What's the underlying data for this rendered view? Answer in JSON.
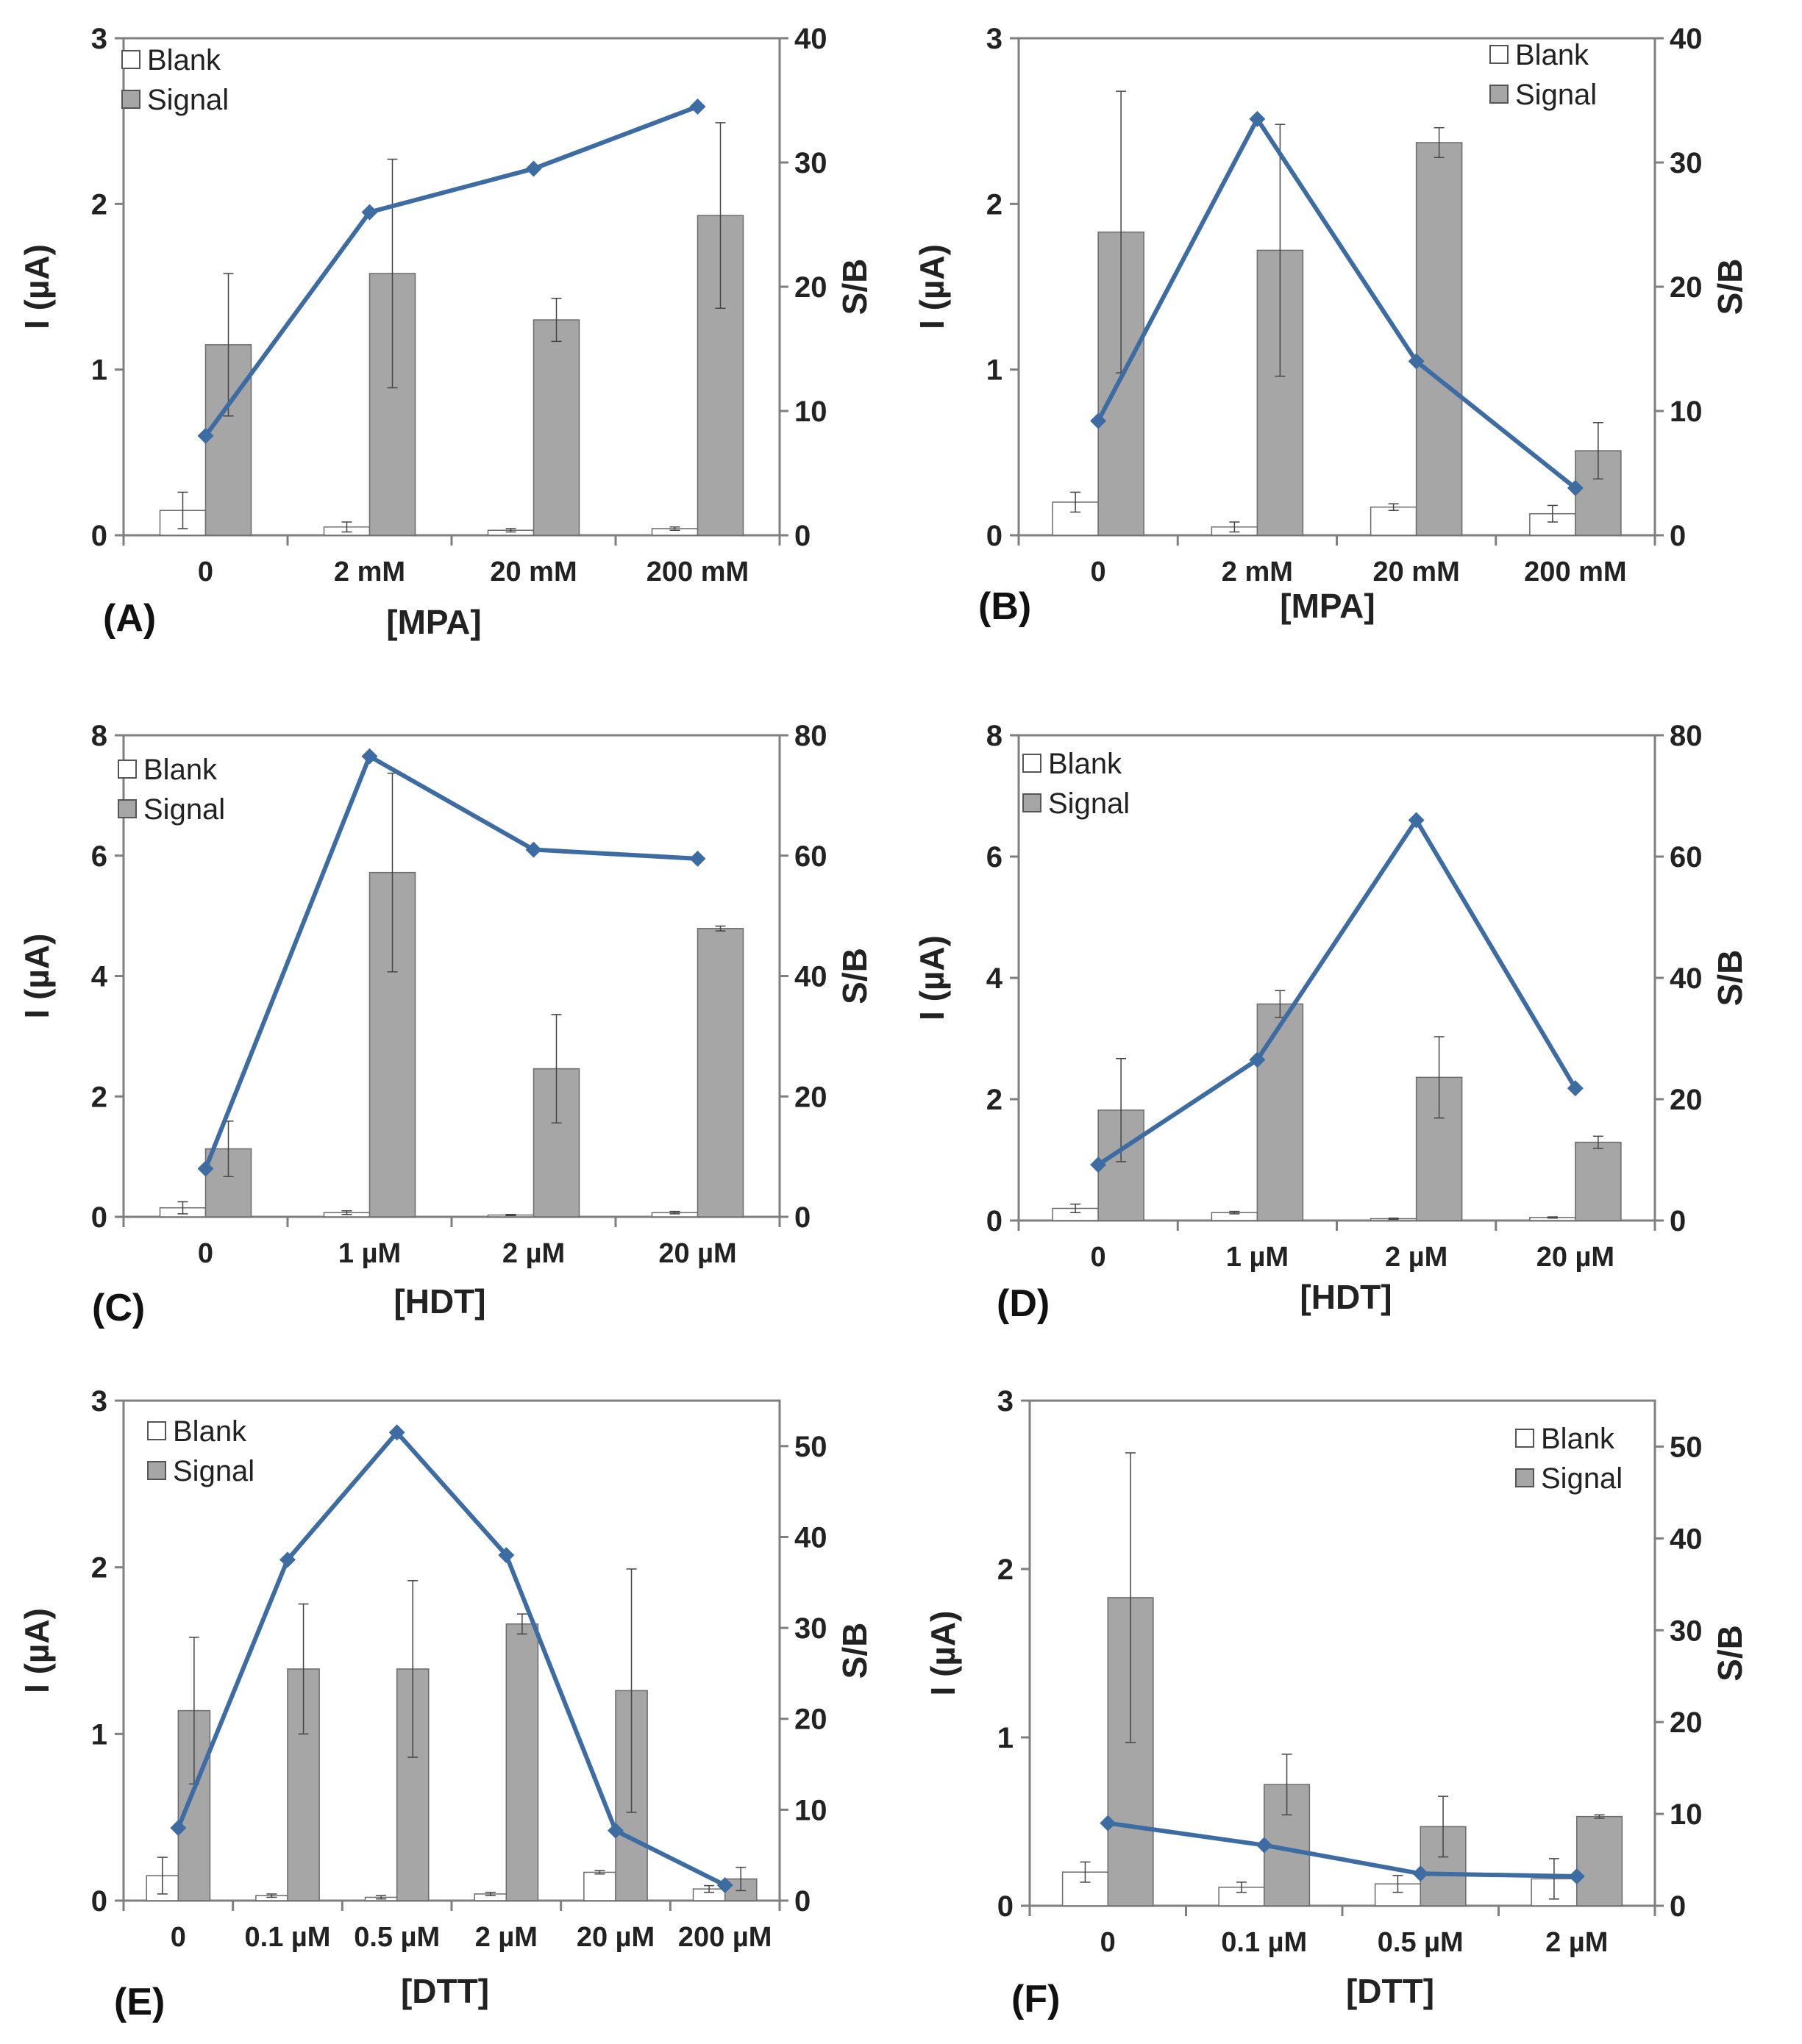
{
  "figure": {
    "legend_blank": "Blank",
    "legend_signal": "Signal",
    "colors": {
      "blank": "#ffffff",
      "signal": "#a6a6a6",
      "line": "#3d6ca3",
      "axis": "#7f7f7f"
    }
  },
  "chart_data": [
    {
      "panel_label": "(A)",
      "type": "bar",
      "xlabel": "[MPA]",
      "ylabel": "I (µA)",
      "y2label": "S/B",
      "categories": [
        "0",
        "2 mM",
        "20 mM",
        "200 mM"
      ],
      "ylim": [
        0,
        3
      ],
      "yticks": [
        "0",
        "1",
        "2",
        "3"
      ],
      "y2lim": [
        0,
        40
      ],
      "y2ticks": [
        "0",
        "10",
        "20",
        "30",
        "40"
      ],
      "legend_position": "top-left",
      "series": [
        {
          "name": "Blank",
          "values": [
            0.15,
            0.05,
            0.03,
            0.04
          ],
          "errors": [
            0.11,
            0.03,
            0.01,
            0.01
          ]
        },
        {
          "name": "Signal",
          "values": [
            1.15,
            1.58,
            1.3,
            1.93
          ],
          "errors": [
            0.43,
            0.69,
            0.13,
            0.56
          ]
        },
        {
          "name": "S/B",
          "axis": "secondary",
          "values": [
            8,
            26,
            29.5,
            34.5
          ]
        }
      ]
    },
    {
      "panel_label": "(B)",
      "type": "bar",
      "xlabel": "[MPA]",
      "ylabel": "I (µA)",
      "y2label": "S/B",
      "categories": [
        "0",
        "2 mM",
        "20 mM",
        "200 mM"
      ],
      "ylim": [
        0,
        3
      ],
      "yticks": [
        "0",
        "1",
        "2",
        "3"
      ],
      "y2lim": [
        0,
        40
      ],
      "y2ticks": [
        "0",
        "10",
        "20",
        "30",
        "40"
      ],
      "legend_position": "top-right",
      "series": [
        {
          "name": "Blank",
          "values": [
            0.2,
            0.05,
            0.17,
            0.13
          ],
          "errors": [
            0.06,
            0.03,
            0.02,
            0.05
          ]
        },
        {
          "name": "Signal",
          "values": [
            1.83,
            1.72,
            2.37,
            0.51
          ],
          "errors": [
            0.85,
            0.76,
            0.09,
            0.17
          ]
        },
        {
          "name": "S/B",
          "axis": "secondary",
          "values": [
            9.2,
            33.5,
            14,
            3.8
          ]
        }
      ]
    },
    {
      "panel_label": "(C)",
      "type": "bar",
      "xlabel": "[HDT]",
      "ylabel": "I (µA)",
      "y2label": "S/B",
      "categories": [
        "0",
        "1 µM",
        "2 µM",
        "20 µM"
      ],
      "ylim": [
        0,
        8
      ],
      "yticks": [
        "0",
        "2",
        "4",
        "6",
        "8"
      ],
      "y2lim": [
        0,
        80
      ],
      "y2ticks": [
        "0",
        "20",
        "40",
        "60",
        "80"
      ],
      "legend_position": "top-left",
      "series": [
        {
          "name": "Blank",
          "values": [
            0.15,
            0.07,
            0.03,
            0.07
          ],
          "errors": [
            0.1,
            0.03,
            0.01,
            0.02
          ]
        },
        {
          "name": "Signal",
          "values": [
            1.13,
            5.72,
            2.46,
            4.79
          ],
          "errors": [
            0.46,
            1.65,
            0.9,
            0.04
          ]
        },
        {
          "name": "S/B",
          "axis": "secondary",
          "values": [
            8,
            76.5,
            61,
            59.5
          ]
        }
      ]
    },
    {
      "panel_label": "(D)",
      "type": "bar",
      "xlabel": "[HDT]",
      "ylabel": "I (µA)",
      "y2label": "S/B",
      "categories": [
        "0",
        "1 µM",
        "2 µM",
        "20 µM"
      ],
      "ylim": [
        0,
        8
      ],
      "yticks": [
        "0",
        "2",
        "4",
        "6",
        "8"
      ],
      "y2lim": [
        0,
        80
      ],
      "y2ticks": [
        "0",
        "20",
        "40",
        "60",
        "80"
      ],
      "legend_position": "top-left",
      "series": [
        {
          "name": "Blank",
          "values": [
            0.2,
            0.13,
            0.03,
            0.05
          ],
          "errors": [
            0.07,
            0.02,
            0.01,
            0.01
          ]
        },
        {
          "name": "Signal",
          "values": [
            1.82,
            3.57,
            2.36,
            1.29
          ],
          "errors": [
            0.85,
            0.22,
            0.67,
            0.1
          ]
        },
        {
          "name": "S/B",
          "axis": "secondary",
          "values": [
            9.2,
            26.5,
            66,
            21.8
          ]
        }
      ]
    },
    {
      "panel_label": "(E)",
      "type": "bar",
      "xlabel": "[DTT]",
      "ylabel": "I (µA)",
      "y2label": "S/B",
      "categories": [
        "0",
        "0.1 µM",
        "0.5 µM",
        "2 µM",
        "20 µM",
        "200 µM"
      ],
      "ylim": [
        0,
        3
      ],
      "yticks": [
        "0",
        "1",
        "2",
        "3"
      ],
      "y2lim": [
        0,
        55
      ],
      "y2ticks": [
        "0",
        "10",
        "20",
        "30",
        "40",
        "50"
      ],
      "legend_position": "top-left",
      "series": [
        {
          "name": "Blank",
          "values": [
            0.15,
            0.03,
            0.02,
            0.04,
            0.17,
            0.07
          ],
          "errors": [
            0.11,
            0.01,
            0.01,
            0.01,
            0.01,
            0.02
          ]
        },
        {
          "name": "Signal",
          "values": [
            1.14,
            1.39,
            1.39,
            1.66,
            1.26,
            0.13
          ],
          "errors": [
            0.44,
            0.39,
            0.53,
            0.06,
            0.73,
            0.07
          ]
        },
        {
          "name": "S/B",
          "axis": "secondary",
          "values": [
            8,
            37.5,
            51.5,
            38,
            7.7,
            1.7
          ]
        }
      ]
    },
    {
      "panel_label": "(F)",
      "type": "bar",
      "xlabel": "[DTT]",
      "ylabel": "I (µA)",
      "y2label": "S/B",
      "categories": [
        "0",
        "0.1 µM",
        "0.5 µM",
        "2 µM"
      ],
      "ylim": [
        0,
        3
      ],
      "yticks": [
        "0",
        "1",
        "2",
        "3"
      ],
      "y2lim": [
        0,
        55
      ],
      "y2ticks": [
        "0",
        "10",
        "20",
        "30",
        "40",
        "50"
      ],
      "legend_position": "top-right",
      "series": [
        {
          "name": "Blank",
          "values": [
            0.2,
            0.11,
            0.13,
            0.16
          ],
          "errors": [
            0.06,
            0.03,
            0.05,
            0.12
          ]
        },
        {
          "name": "Signal",
          "values": [
            1.83,
            0.72,
            0.47,
            0.53
          ],
          "errors": [
            0.86,
            0.18,
            0.18,
            0.01
          ]
        },
        {
          "name": "S/B",
          "axis": "secondary",
          "values": [
            9,
            6.6,
            3.5,
            3.2
          ]
        }
      ]
    }
  ]
}
